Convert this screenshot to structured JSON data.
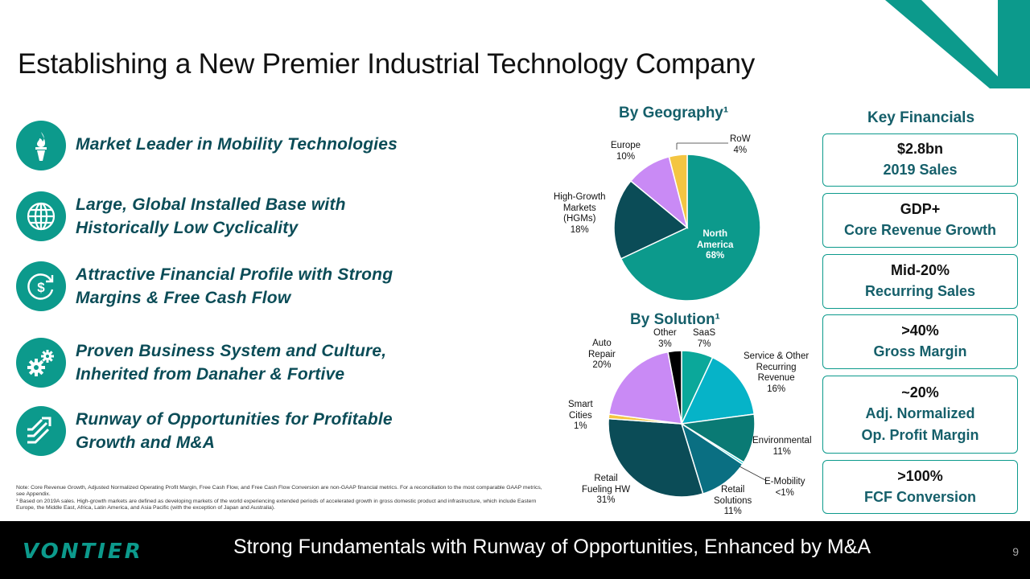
{
  "title": "Establishing a New Premier Industrial Technology Company",
  "colors": {
    "teal": "#0c9a8c",
    "dark_teal": "#155f6a",
    "navy_teal": "#0b4c57",
    "footer_bg": "#000000"
  },
  "pillars": [
    {
      "icon": "torch-icon",
      "line1": "Market Leader in Mobility Technologies",
      "line2": ""
    },
    {
      "icon": "globe-icon",
      "line1": "Large, Global Installed Base with",
      "line2": "Historically Low Cyclicality"
    },
    {
      "icon": "dollar-cycle-icon",
      "line1": "Attractive Financial Profile with Strong",
      "line2": "Margins & Free Cash Flow"
    },
    {
      "icon": "gears-icon",
      "line1": "Proven Business System and Culture,",
      "line2": "Inherited from Danaher & Fortive"
    },
    {
      "icon": "growth-arrows-icon",
      "line1": "Runway of Opportunities for Profitable",
      "line2": "Growth and M&A"
    }
  ],
  "notes": {
    "line1": "Note: Core Revenue Growth, Adjusted Normalized Operating Profit Margin, Free Cash Flow, and Free Cash Flow Conversion are non-GAAP financial metrics. For a reconciliation to the most comparable GAAP metrics, see Appendix.",
    "line2": "¹ Based on 2019A sales. High-growth markets are defined as developing markets of the world experiencing extended periods of accelerated growth in gross domestic product and infrastructure, which include Eastern Europe, the Middle East, Africa, Latin America, and Asia Pacific (with the exception of Japan and Australia)."
  },
  "chart_data": [
    {
      "type": "pie",
      "title": "By Geography¹",
      "slices": [
        {
          "label": "North America",
          "value": 68,
          "display": "68%",
          "color": "#0c9a8c"
        },
        {
          "label": "High-Growth Markets (HGMs)",
          "value": 18,
          "display": "18%",
          "color": "#0b4c57"
        },
        {
          "label": "Europe",
          "value": 10,
          "display": "10%",
          "color": "#c98af5"
        },
        {
          "label": "RoW",
          "value": 4,
          "display": "4%",
          "color": "#f4c542"
        }
      ]
    },
    {
      "type": "pie",
      "title": "By Solution¹",
      "slices": [
        {
          "label": "SaaS",
          "value": 7,
          "display": "7%",
          "color": "#0ba89a"
        },
        {
          "label": "Service & Other Recurring Revenue",
          "value": 16,
          "display": "16%",
          "color": "#06b3c8"
        },
        {
          "label": "Environmental",
          "value": 11,
          "display": "11%",
          "color": "#0a7a74"
        },
        {
          "label": "E-Mobility",
          "value": 0.5,
          "display": "<1%",
          "color": "#1fd0d8"
        },
        {
          "label": "Retail Solutions",
          "value": 11,
          "display": "11%",
          "color": "#0a6f82"
        },
        {
          "label": "Retail Fueling HW",
          "value": 31,
          "display": "31%",
          "color": "#0b4c57"
        },
        {
          "label": "Smart Cities",
          "value": 1,
          "display": "1%",
          "color": "#f4c542"
        },
        {
          "label": "Auto Repair",
          "value": 20,
          "display": "20%",
          "color": "#c98af5"
        },
        {
          "label": "Other",
          "value": 3,
          "display": "3%",
          "color": "#000000"
        }
      ]
    }
  ],
  "geo_labels": {
    "na": [
      "North",
      "America",
      "68%"
    ],
    "hgm": [
      "High-Growth",
      "Markets",
      "(HGMs)",
      "18%"
    ],
    "eu": [
      "Europe",
      "10%"
    ],
    "row": [
      "RoW",
      "4%"
    ]
  },
  "sol_labels": {
    "other": [
      "Other",
      "3%"
    ],
    "saas": [
      "SaaS",
      "7%"
    ],
    "service": [
      "Service & Other",
      "Recurring",
      "Revenue",
      "16%"
    ],
    "env": [
      "Environmental",
      "11%"
    ],
    "emob": [
      "E-Mobility",
      "<1%"
    ],
    "retail_sol": [
      "Retail",
      "Solutions",
      "11%"
    ],
    "fueling": [
      "Retail",
      "Fueling HW",
      "31%"
    ],
    "smart": [
      "Smart",
      "Cities",
      "1%"
    ],
    "auto": [
      "Auto",
      "Repair",
      "20%"
    ]
  },
  "key_financials": {
    "heading": "Key Financials",
    "items": [
      {
        "value": "$2.8bn",
        "l1": "2019 Sales",
        "l2": ""
      },
      {
        "value": "GDP+",
        "l1": "Core Revenue Growth",
        "l2": ""
      },
      {
        "value": "Mid-20%",
        "l1": "Recurring Sales",
        "l2": ""
      },
      {
        "value": ">40%",
        "l1": "Gross Margin",
        "l2": ""
      },
      {
        "value": "~20%",
        "l1": "Adj. Normalized",
        "l2": "Op. Profit Margin"
      },
      {
        "value": ">100%",
        "l1": "FCF Conversion",
        "l2": ""
      }
    ]
  },
  "footer": {
    "logo": "VONTIER",
    "tagline": "Strong Fundamentals with Runway of Opportunities, Enhanced by M&A",
    "page": "9"
  }
}
